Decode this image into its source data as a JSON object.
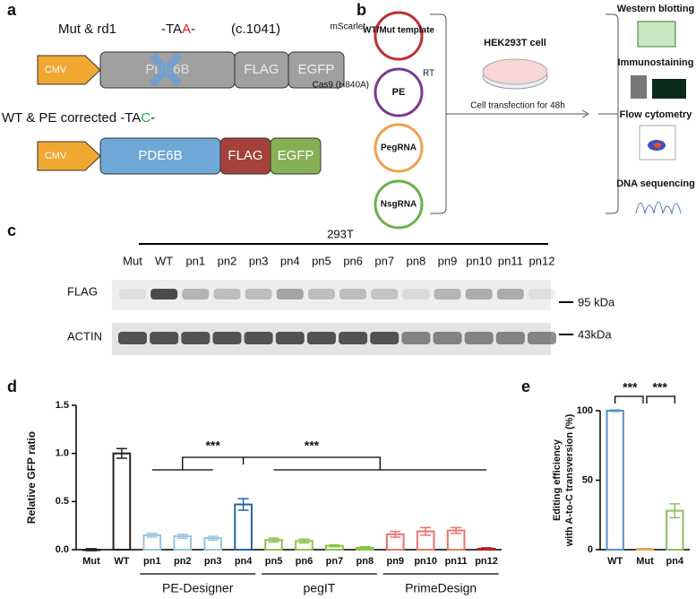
{
  "panel_labels": [
    "a",
    "b",
    "c",
    "d",
    "e"
  ],
  "diagram_a": {
    "mut_label": "Mut & rd1",
    "mut_codon": [
      "-TA",
      "A",
      "-"
    ],
    "mut_position": "(c.1041)",
    "wt_label": "WT & PE corrected -TA",
    "wt_codon": [
      "C",
      "-"
    ],
    "promoter": "CMV",
    "gene": "PDE6B",
    "tag": "FLAG",
    "reporter": "EGFP"
  },
  "diagram_b": {
    "plasmids": [
      {
        "side": "mScarlet",
        "name": "WT/Mut template"
      },
      {
        "side": "Cas9 (H840A)",
        "name": "PE",
        "extra": "RT"
      },
      {
        "name": "PegRNA"
      },
      {
        "name": "NsgRNA"
      }
    ],
    "cell": "HEK293T cell",
    "step": "Cell transfection for 48h",
    "readouts": [
      "Western blotting",
      "Immunostaining",
      "Flow cytometry",
      "DNA sequencing"
    ]
  },
  "blot_c": {
    "cell_line": "293T",
    "lanes": [
      "Mut",
      "WT",
      "pn1",
      "pn2",
      "pn3",
      "pn4",
      "pn5",
      "pn6",
      "pn7",
      "pn8",
      "pn9",
      "pn10",
      "pn11",
      "pn12"
    ],
    "rows": [
      {
        "name": "FLAG",
        "marker": "95 kDa"
      },
      {
        "name": "ACTIN",
        "marker": "43kDa"
      }
    ]
  },
  "chart_data": [
    {
      "type": "bar",
      "y_label": "Relative GFP ratio",
      "categories": [
        "Mut",
        "WT",
        "pn1",
        "pn2",
        "pn3",
        "pn4",
        "pn5",
        "pn6",
        "pn7",
        "pn8",
        "pn9",
        "pn10",
        "pn11",
        "pn12"
      ],
      "values": [
        0.0,
        1.0,
        0.15,
        0.14,
        0.12,
        0.47,
        0.1,
        0.09,
        0.04,
        0.02,
        0.16,
        0.19,
        0.2,
        0.01
      ],
      "errors": [
        0.01,
        0.05,
        0.02,
        0.02,
        0.02,
        0.06,
        0.02,
        0.02,
        0.01,
        0.01,
        0.03,
        0.04,
        0.03,
        0.01
      ],
      "colors": [
        "#222222",
        "#222222",
        "#9cc3dc",
        "#9cc3dc",
        "#9cc3dc",
        "#2166ac",
        "#8cc24a",
        "#8cc24a",
        "#8cc24a",
        "#8cc24a",
        "#e8746a",
        "#e8746a",
        "#e8746a",
        "#b22222"
      ],
      "ylim": [
        0,
        1.5
      ],
      "yticks": [
        {
          "value": 0,
          "label": "0.0"
        },
        {
          "value": 0.5,
          "label": "0.5"
        },
        {
          "value": 1.0,
          "label": "1.0"
        },
        {
          "value": 1.5,
          "label": "1.5"
        }
      ],
      "groups": [
        "PE-Designer",
        "pegIT",
        "PrimeDesign"
      ],
      "annotations": [
        "***",
        "***"
      ]
    },
    {
      "type": "bar",
      "y_label": [
        "Editing efficiency",
        "with A-to-C transversion (%)"
      ],
      "categories": [
        "WT",
        "Mut",
        "pn4"
      ],
      "values": [
        100,
        0.5,
        28
      ],
      "errors": [
        0.5,
        0.3,
        5
      ],
      "colors": [
        "#5b8fc7",
        "#f0a050",
        "#8cc060"
      ],
      "ylim": [
        0,
        100
      ],
      "yticks": [
        0,
        50,
        100
      ],
      "annotations": [
        "***",
        "***"
      ]
    }
  ]
}
